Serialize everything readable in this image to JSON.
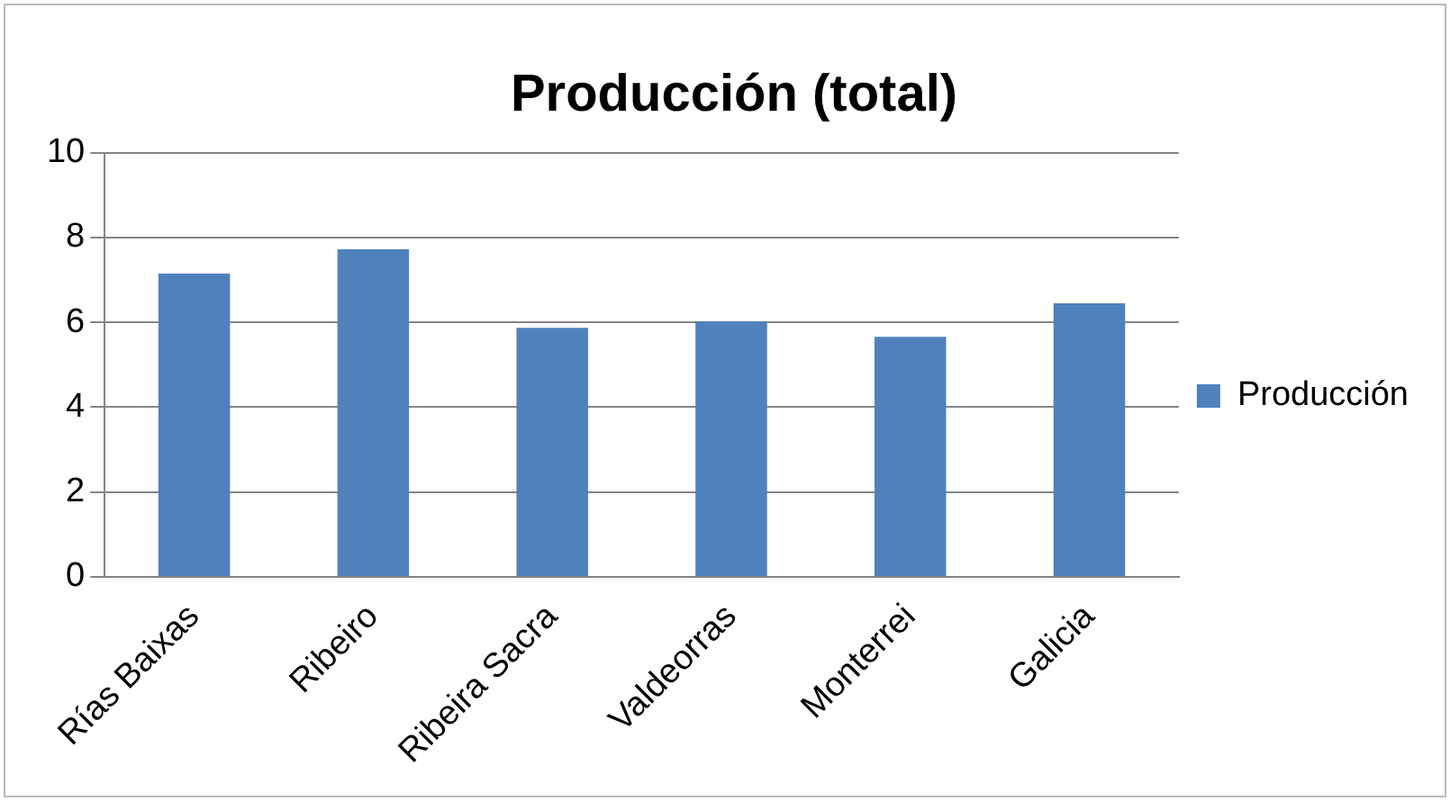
{
  "chart_data": {
    "type": "bar",
    "title": "Producción (total)",
    "categories": [
      "Rías Baixas",
      "Ribeiro",
      "Ribeira Sacra",
      "Valdeorras",
      "Monterrei",
      "Galicia"
    ],
    "series": [
      {
        "name": "Producción",
        "color": "#4f81bd",
        "values": [
          7.15,
          7.72,
          5.87,
          6.02,
          5.66,
          6.45
        ]
      }
    ],
    "ylim": [
      0,
      10
    ],
    "yticks": [
      0,
      2,
      4,
      6,
      8,
      10
    ],
    "grid": "y",
    "legend": "right"
  }
}
